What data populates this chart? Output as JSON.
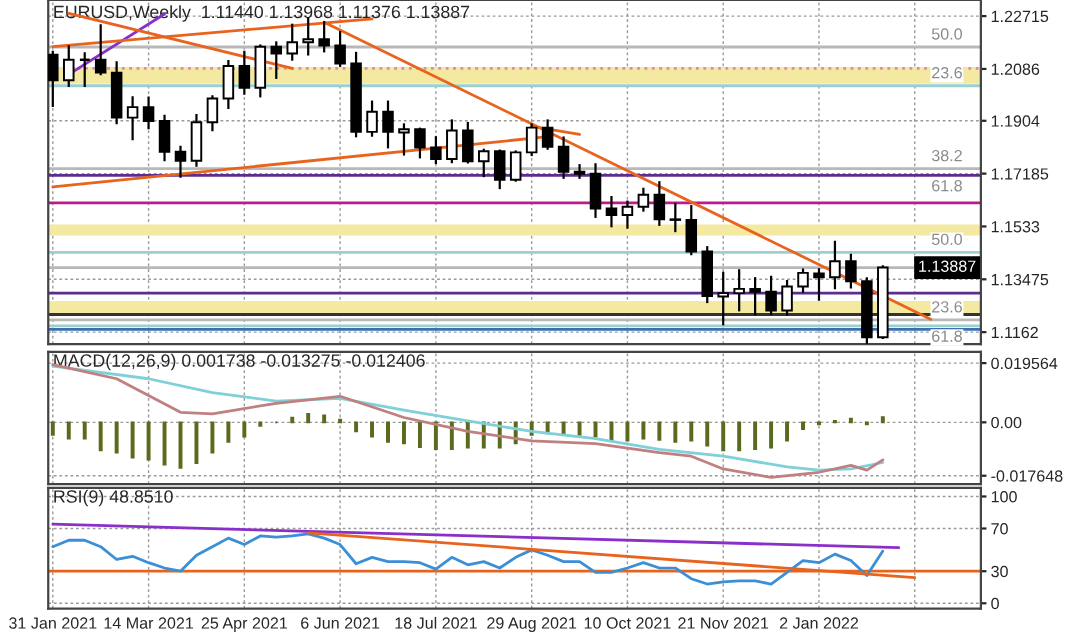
{
  "chart_data": [
    {
      "type": "candlestick",
      "title": "EURUSD,Weekly  1.11440 1.13968 1.11376 1.13887",
      "x": [
        "2021-01-31",
        "2021-02-07",
        "2021-02-14",
        "2021-02-21",
        "2021-02-28",
        "2021-03-07",
        "2021-03-14",
        "2021-03-21",
        "2021-03-28",
        "2021-04-04",
        "2021-04-11",
        "2021-04-18",
        "2021-04-25",
        "2021-05-02",
        "2021-05-09",
        "2021-05-16",
        "2021-05-23",
        "2021-05-30",
        "2021-06-06",
        "2021-06-13",
        "2021-06-20",
        "2021-06-27",
        "2021-07-04",
        "2021-07-11",
        "2021-07-18",
        "2021-07-25",
        "2021-08-01",
        "2021-08-08",
        "2021-08-15",
        "2021-08-22",
        "2021-08-29",
        "2021-09-05",
        "2021-09-12",
        "2021-09-19",
        "2021-09-26",
        "2021-10-03",
        "2021-10-10",
        "2021-10-17",
        "2021-10-24",
        "2021-10-31",
        "2021-11-07",
        "2021-11-14",
        "2021-11-21",
        "2021-11-28",
        "2021-12-05",
        "2021-12-12",
        "2021-12-19",
        "2021-12-26",
        "2022-01-02",
        "2022-01-09",
        "2022-01-16",
        "2022-01-23",
        "2022-01-30"
      ],
      "ohlc": [
        [
          1.2136,
          1.215,
          1.1952,
          1.2046
        ],
        [
          1.2046,
          1.2169,
          1.2023,
          1.2118
        ],
        [
          1.2118,
          1.2145,
          1.2023,
          1.2118
        ],
        [
          1.2118,
          1.2243,
          1.2064,
          1.2073
        ],
        [
          1.2073,
          1.2113,
          1.1892,
          1.1915
        ],
        [
          1.1915,
          1.199,
          1.1836,
          1.1952
        ],
        [
          1.1952,
          1.1989,
          1.1874,
          1.1903
        ],
        [
          1.1903,
          1.1925,
          1.1762,
          1.1795
        ],
        [
          1.1795,
          1.1816,
          1.1704,
          1.1764
        ],
        [
          1.1764,
          1.1928,
          1.1743,
          1.1899
        ],
        [
          1.1899,
          1.1994,
          1.1867,
          1.1982
        ],
        [
          1.1982,
          1.2117,
          1.1945,
          1.2096
        ],
        [
          1.2096,
          1.215,
          1.1995,
          1.202
        ],
        [
          1.202,
          1.2172,
          1.1986,
          1.2164
        ],
        [
          1.2164,
          1.2183,
          1.2051,
          1.214
        ],
        [
          1.214,
          1.2245,
          1.2115,
          1.218
        ],
        [
          1.218,
          1.2266,
          1.2133,
          1.219
        ],
        [
          1.219,
          1.2254,
          1.2144,
          1.2168
        ],
        [
          1.2168,
          1.2219,
          1.2093,
          1.2105
        ],
        [
          1.2105,
          1.2146,
          1.1846,
          1.1865
        ],
        [
          1.1865,
          1.1975,
          1.1848,
          1.1936
        ],
        [
          1.1936,
          1.1975,
          1.1807,
          1.1865
        ],
        [
          1.1863,
          1.1895,
          1.1782,
          1.1874
        ],
        [
          1.1874,
          1.188,
          1.1772,
          1.181
        ],
        [
          1.181,
          1.185,
          1.1752,
          1.177
        ],
        [
          1.177,
          1.1909,
          1.1755,
          1.187
        ],
        [
          1.187,
          1.19,
          1.1754,
          1.1762
        ],
        [
          1.1762,
          1.1806,
          1.1706,
          1.1797
        ],
        [
          1.1797,
          1.1803,
          1.1664,
          1.1697
        ],
        [
          1.1697,
          1.18,
          1.169,
          1.1793
        ],
        [
          1.1793,
          1.1895,
          1.178,
          1.188
        ],
        [
          1.188,
          1.1909,
          1.1802,
          1.1813
        ],
        [
          1.1813,
          1.1849,
          1.17,
          1.1725
        ],
        [
          1.1725,
          1.1752,
          1.17,
          1.1718
        ],
        [
          1.1718,
          1.1755,
          1.1563,
          1.1596
        ],
        [
          1.1596,
          1.164,
          1.153,
          1.1573
        ],
        [
          1.1573,
          1.1624,
          1.1525,
          1.1602
        ],
        [
          1.1602,
          1.1669,
          1.1585,
          1.1644
        ],
        [
          1.1644,
          1.1692,
          1.1535,
          1.1558
        ],
        [
          1.1558,
          1.1616,
          1.1513,
          1.1556
        ],
        [
          1.1556,
          1.1608,
          1.1432,
          1.1445
        ],
        [
          1.1445,
          1.1464,
          1.1264,
          1.1289
        ],
        [
          1.1287,
          1.1374,
          1.1186,
          1.1299
        ],
        [
          1.1299,
          1.1383,
          1.1235,
          1.1314
        ],
        [
          1.1314,
          1.1355,
          1.1221,
          1.1304
        ],
        [
          1.1304,
          1.136,
          1.1222,
          1.1238
        ],
        [
          1.1238,
          1.1345,
          1.122,
          1.1322
        ],
        [
          1.1322,
          1.1385,
          1.13,
          1.137
        ],
        [
          1.1368,
          1.1386,
          1.1272,
          1.1355
        ],
        [
          1.1355,
          1.1483,
          1.1313,
          1.1411
        ],
        [
          1.1411,
          1.1437,
          1.1315,
          1.1341
        ],
        [
          1.1341,
          1.1355,
          1.1121,
          1.1144
        ],
        [
          1.1144,
          1.13968,
          1.11376,
          1.13887
        ]
      ],
      "series": [
        {
          "type": "line",
          "color": "#8b2fc9",
          "x": [
            "2021-02-07",
            "2021-03-21"
          ],
          "values": [
            1.2067,
            1.2279
          ]
        },
        {
          "type": "line",
          "color": "#e8641e",
          "x": [
            "2021-02-07",
            "2021-05-16"
          ],
          "values": [
            1.2281,
            1.2088
          ]
        },
        {
          "type": "line",
          "color": "#e8641e",
          "x": [
            "2021-01-31",
            "2021-06-20"
          ],
          "values": [
            1.2164,
            1.2262
          ]
        },
        {
          "type": "line",
          "color": "#e8641e",
          "x": [
            "2021-05-30",
            "2022-02-20"
          ],
          "values": [
            1.225,
            1.1207
          ]
        },
        {
          "type": "line",
          "color": "#e8641e",
          "x": [
            "2021-01-31",
            "2021-09-05"
          ],
          "values": [
            1.1672,
            1.1848
          ]
        },
        {
          "type": "line",
          "color": "#e8641e",
          "x": [
            "2021-08-29",
            "2021-09-19"
          ],
          "values": [
            1.1884,
            1.1856
          ]
        }
      ],
      "bands": [
        {
          "axis": "y",
          "from": 1.2034,
          "to": 1.2093,
          "color": "#f3e9a0"
        },
        {
          "axis": "y",
          "from": 1.1501,
          "to": 1.154,
          "color": "#f3e9a0"
        },
        {
          "axis": "y",
          "from": 1.1224,
          "to": 1.1271,
          "color": "#f3e9a0"
        }
      ],
      "ref_lines": [
        {
          "axis": "y",
          "value": 1.2163,
          "label": null,
          "color": "#b8b8b8",
          "line_style": "solid"
        },
        {
          "axis": "y",
          "value": 1.2088,
          "label": null,
          "color": "#e08aa8",
          "line_style": "dotted"
        },
        {
          "axis": "y",
          "value": 1.2027,
          "label": null,
          "color": "#9ccfcf",
          "line_style": "solid"
        },
        {
          "axis": "y",
          "value": 1.1736,
          "label": null,
          "color": "#b8b8b8",
          "line_style": "solid"
        },
        {
          "axis": "y",
          "value": 1.1712,
          "label": null,
          "color": "#5b2d8e",
          "line_style": "solid"
        },
        {
          "axis": "y",
          "value": 1.1616,
          "label": null,
          "color": "#c0188c",
          "line_style": "solid"
        },
        {
          "axis": "y",
          "value": 1.1442,
          "label": null,
          "color": "#9ccfcf",
          "line_style": "solid"
        },
        {
          "axis": "y",
          "value": 1.13887,
          "label": "1.13887",
          "color": "#b8b8b8",
          "line_style": "solid"
        },
        {
          "axis": "y",
          "value": 1.1299,
          "label": null,
          "color": "#5b2d8e",
          "line_style": "solid"
        },
        {
          "axis": "y",
          "value": 1.1224,
          "label": null,
          "color": "#333333",
          "line_style": "solid"
        },
        {
          "axis": "y",
          "value": 1.1205,
          "label": null,
          "color": "#b8b8b8",
          "line_style": "solid"
        },
        {
          "axis": "y",
          "value": 1.1184,
          "label": null,
          "color": "#9ccfcf",
          "line_style": "solid"
        },
        {
          "axis": "y",
          "value": 1.1172,
          "label": null,
          "color": "#3a6fb0",
          "line_style": "solid"
        }
      ],
      "annotations": [
        {
          "text": "50.0",
          "x": "2022-03-06",
          "y": 1.2163
        },
        {
          "text": "23.6",
          "x": "2022-03-06",
          "y": 1.2027
        },
        {
          "text": "38.2",
          "x": "2022-03-06",
          "y": 1.1736
        },
        {
          "text": "61.8",
          "x": "2022-03-06",
          "y": 1.1712
        },
        {
          "text": "50.0",
          "x": "2022-03-06",
          "y": 1.1442
        },
        {
          "text": "23.6",
          "x": "2022-03-06",
          "y": 1.1205
        },
        {
          "text": "61.8",
          "x": "2022-03-06",
          "y": 1.1184
        }
      ],
      "xlim": [
        "2021-01-29",
        "2022-03-14"
      ],
      "xticks": [
        {
          "value": "2021-01-31",
          "label": null
        },
        {
          "value": "2021-03-14",
          "label": null
        },
        {
          "value": "2021-04-25",
          "label": null
        },
        {
          "value": "2021-06-06",
          "label": null
        },
        {
          "value": "2021-07-18",
          "label": null
        },
        {
          "value": "2021-08-29",
          "label": null
        },
        {
          "value": "2021-10-10",
          "label": null
        },
        {
          "value": "2021-11-21",
          "label": null
        },
        {
          "value": "2022-01-02",
          "label": null
        },
        {
          "value": "2022-02-13",
          "label": null
        }
      ],
      "ylim": [
        1.112,
        1.2328
      ],
      "yticks": [
        1.22715,
        1.2086,
        1.1904,
        1.17185,
        1.1533,
        1.13475,
        1.1162
      ],
      "grid": true,
      "tick_labels": "y"
    },
    {
      "type": "bar",
      "title": "MACD(12,26,9) 0.001738 -0.013275 -0.012406",
      "x": [
        "2021-01-31",
        "2021-02-07",
        "2021-02-14",
        "2021-02-21",
        "2021-02-28",
        "2021-03-07",
        "2021-03-14",
        "2021-03-21",
        "2021-03-28",
        "2021-04-04",
        "2021-04-11",
        "2021-04-18",
        "2021-04-25",
        "2021-05-02",
        "2021-05-09",
        "2021-05-16",
        "2021-05-23",
        "2021-05-30",
        "2021-06-06",
        "2021-06-13",
        "2021-06-20",
        "2021-06-27",
        "2021-07-04",
        "2021-07-11",
        "2021-07-18",
        "2021-07-25",
        "2021-08-01",
        "2021-08-08",
        "2021-08-15",
        "2021-08-22",
        "2021-08-29",
        "2021-09-05",
        "2021-09-12",
        "2021-09-19",
        "2021-09-26",
        "2021-10-03",
        "2021-10-10",
        "2021-10-17",
        "2021-10-24",
        "2021-10-31",
        "2021-11-07",
        "2021-11-14",
        "2021-11-21",
        "2021-11-28",
        "2021-12-05",
        "2021-12-12",
        "2021-12-19",
        "2021-12-26",
        "2022-01-02",
        "2022-01-09",
        "2022-01-16",
        "2022-01-23",
        "2022-01-30"
      ],
      "series": [
        {
          "type": "bar",
          "color": "#5a6b1e",
          "values": [
            -0.0042,
            -0.0054,
            -0.0054,
            -0.0093,
            -0.01,
            -0.0117,
            -0.0123,
            -0.014,
            -0.0151,
            -0.0135,
            -0.01,
            -0.0065,
            -0.0047,
            -0.0012,
            0.0,
            0.0016,
            0.0028,
            0.0023,
            0.0009,
            -0.003,
            -0.0047,
            -0.0065,
            -0.007,
            -0.0082,
            -0.0089,
            -0.0089,
            -0.0084,
            -0.0084,
            -0.0084,
            -0.007,
            -0.0042,
            -0.0037,
            -0.0037,
            -0.0042,
            -0.0047,
            -0.0061,
            -0.0061,
            -0.0054,
            -0.0058,
            -0.0065,
            -0.0061,
            -0.0077,
            -0.0093,
            -0.0093,
            -0.0089,
            -0.0084,
            -0.0061,
            -0.0023,
            -0.0007,
            0.0005,
            0.0012,
            -0.0007,
            0.001738
          ]
        },
        {
          "type": "line",
          "color": "#7fd0d8",
          "x": [
            "2021-01-31",
            "2021-03-14",
            "2021-04-11",
            "2021-05-09",
            "2021-06-06",
            "2021-07-04",
            "2021-08-01",
            "2021-08-29",
            "2021-09-26",
            "2021-10-24",
            "2021-11-21",
            "2021-12-19",
            "2022-01-02",
            "2022-01-16",
            "2022-01-30"
          ],
          "values": [
            0.0186,
            0.0144,
            0.0098,
            0.007,
            0.0079,
            0.004,
            0.0005,
            -0.003,
            -0.0054,
            -0.0089,
            -0.0112,
            -0.0147,
            -0.0158,
            -0.0154,
            -0.013275
          ]
        },
        {
          "type": "line",
          "color": "#c08080",
          "x": [
            "2021-01-31",
            "2021-02-28",
            "2021-03-28",
            "2021-04-11",
            "2021-05-09",
            "2021-06-06",
            "2021-07-04",
            "2021-08-01",
            "2021-08-29",
            "2021-09-26",
            "2021-10-24",
            "2021-11-07",
            "2021-11-21",
            "2021-12-12",
            "2022-01-02",
            "2022-01-16",
            "2022-01-23",
            "2022-01-30"
          ],
          "values": [
            0.0191,
            0.0144,
            0.0033,
            0.0028,
            0.0063,
            0.0086,
            0.0016,
            -0.003,
            -0.0061,
            -0.007,
            -0.01,
            -0.0112,
            -0.0154,
            -0.0182,
            -0.0165,
            -0.0142,
            -0.0158,
            -0.012406
          ]
        }
      ],
      "xlim": [
        "2021-01-29",
        "2022-03-14"
      ],
      "xticks": [
        {
          "value": "2021-01-31",
          "label": null
        },
        {
          "value": "2021-03-14",
          "label": null
        },
        {
          "value": "2021-04-25",
          "label": null
        },
        {
          "value": "2021-06-06",
          "label": null
        },
        {
          "value": "2021-07-18",
          "label": null
        },
        {
          "value": "2021-08-29",
          "label": null
        },
        {
          "value": "2021-10-10",
          "label": null
        },
        {
          "value": "2021-11-21",
          "label": null
        },
        {
          "value": "2022-01-02",
          "label": null
        },
        {
          "value": "2022-02-13",
          "label": null
        }
      ],
      "ylim": [
        -0.0204,
        0.0233
      ],
      "yticks": [
        0.019564,
        {
          "value": 0,
          "label": "0.00"
        },
        -0.017648
      ],
      "grid": true,
      "tick_labels": "y"
    },
    {
      "type": "line",
      "title": "RSI(9) 48.8510",
      "x": [
        "2021-01-31",
        "2021-02-07",
        "2021-02-14",
        "2021-02-21",
        "2021-02-28",
        "2021-03-07",
        "2021-03-14",
        "2021-03-21",
        "2021-03-28",
        "2021-04-04",
        "2021-04-11",
        "2021-04-18",
        "2021-04-25",
        "2021-05-02",
        "2021-05-09",
        "2021-05-16",
        "2021-05-23",
        "2021-05-30",
        "2021-06-06",
        "2021-06-13",
        "2021-06-20",
        "2021-06-27",
        "2021-07-04",
        "2021-07-11",
        "2021-07-18",
        "2021-07-25",
        "2021-08-01",
        "2021-08-08",
        "2021-08-15",
        "2021-08-22",
        "2021-08-29",
        "2021-09-05",
        "2021-09-12",
        "2021-09-19",
        "2021-09-26",
        "2021-10-03",
        "2021-10-10",
        "2021-10-17",
        "2021-10-24",
        "2021-10-31",
        "2021-11-07",
        "2021-11-14",
        "2021-11-21",
        "2021-11-28",
        "2021-12-05",
        "2021-12-12",
        "2021-12-19",
        "2021-12-26",
        "2022-01-02",
        "2022-01-09",
        "2022-01-16",
        "2022-01-23",
        "2022-01-30"
      ],
      "series": [
        {
          "color": "#3a8fd6",
          "values": [
            53,
            59,
            59,
            53,
            41,
            44,
            38,
            33,
            30,
            45,
            53,
            61,
            55,
            63,
            62,
            63,
            65,
            61,
            55,
            37,
            43,
            39,
            39,
            38,
            32,
            43,
            36,
            39,
            33,
            43,
            50,
            45,
            39,
            39,
            29,
            29,
            33,
            38,
            33,
            33,
            23,
            18,
            20,
            21,
            21,
            18,
            29,
            40,
            38,
            46,
            40,
            26,
            48.851
          ]
        },
        {
          "color": "#8b2fc9",
          "x": [
            "2021-01-31",
            "2022-02-06"
          ],
          "values": [
            74,
            52
          ]
        },
        {
          "color": "#e8641e",
          "x": [
            "2021-05-23",
            "2022-02-13"
          ],
          "values": [
            66,
            24
          ]
        }
      ],
      "ref_lines": [
        {
          "axis": "y",
          "value": 30,
          "label": null,
          "color": "#e8641e",
          "line_style": "solid"
        }
      ],
      "xlim": [
        "2021-01-29",
        "2022-03-14"
      ],
      "xticks": [
        {
          "value": "2021-01-31",
          "label": "31 Jan 2021"
        },
        {
          "value": "2021-03-14",
          "label": "14 Mar 2021"
        },
        {
          "value": "2021-04-25",
          "label": "25 Apr 2021"
        },
        {
          "value": "2021-06-06",
          "label": "6 Jun 2021"
        },
        {
          "value": "2021-07-18",
          "label": "18 Jul 2021"
        },
        {
          "value": "2021-08-29",
          "label": "29 Aug 2021"
        },
        {
          "value": "2021-10-10",
          "label": "10 Oct 2021"
        },
        {
          "value": "2021-11-21",
          "label": "21 Nov 2021"
        },
        {
          "value": "2022-01-02",
          "label": "2 Jan 2022"
        },
        {
          "value": "2022-02-13",
          "label": null
        }
      ],
      "ylim": [
        -5,
        108
      ],
      "yticks": [
        100,
        70,
        30,
        0
      ],
      "grid": true
    }
  ]
}
